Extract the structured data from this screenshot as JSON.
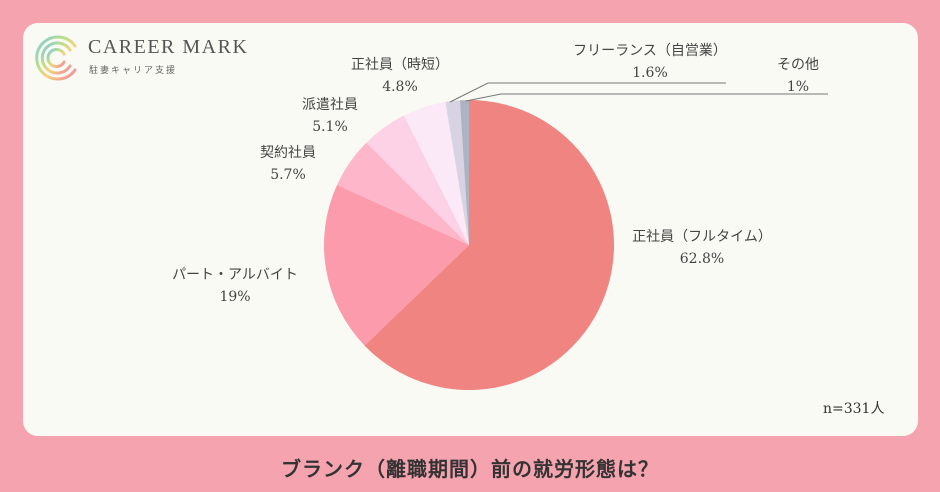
{
  "brand": {
    "name": "CAREER MARK",
    "tagline": "駐妻キャリア支援",
    "logo_icon": "rainbow-concentric-c-logo"
  },
  "footer_title": "ブランク（離職期間）前の就労形態は？",
  "sample_note": "n=331人",
  "colors": {
    "background": "#F6A3B0",
    "card": "#FAFAF5"
  },
  "chart_data": {
    "type": "pie",
    "title": "ブランク（離職期間）前の就労形態は？",
    "start_angle": "12 o'clock",
    "direction": "clockwise",
    "sample_size": "n=331人",
    "slices": [
      {
        "label": "正社員（フルタイム）",
        "value": 62.8,
        "display": "62.8%",
        "color": "#F08480"
      },
      {
        "label": "パート・アルバイト",
        "value": 19,
        "display": "19%",
        "color": "#FB9BAB"
      },
      {
        "label": "契約社員",
        "value": 5.7,
        "display": "5.7%",
        "color": "#FDB6CA"
      },
      {
        "label": "派遣社員",
        "value": 5.1,
        "display": "5.1%",
        "color": "#FED2E6"
      },
      {
        "label": "正社員（時短）",
        "value": 4.8,
        "display": "4.8%",
        "color": "#FCE9F8"
      },
      {
        "label": "フリーランス（自営業）",
        "value": 1.6,
        "display": "1.6%",
        "color": "#D8D3E3"
      },
      {
        "label": "その他",
        "value": 1,
        "display": "1%",
        "color": "#AEB3C4"
      }
    ]
  }
}
